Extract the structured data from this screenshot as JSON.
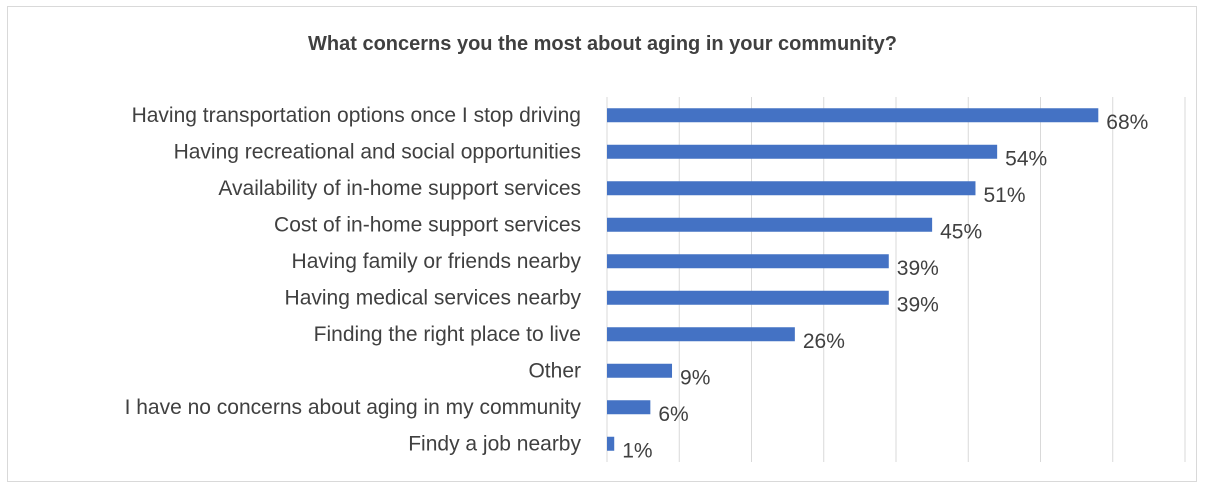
{
  "chart_data": {
    "type": "bar",
    "orientation": "horizontal",
    "title": "What concerns you the most about aging in your community?",
    "categories": [
      "Having transportation options once I stop driving",
      "Having recreational and social opportunities",
      "Availability of in-home support services",
      "Cost of in-home support services",
      "Having family or friends nearby",
      "Having medical services nearby",
      "Finding the right place to live",
      "Other",
      "I have no concerns about aging in my community",
      "Findy a job nearby"
    ],
    "values": [
      68,
      54,
      51,
      45,
      39,
      39,
      26,
      9,
      6,
      1
    ],
    "value_labels": [
      "68%",
      "54%",
      "51%",
      "45%",
      "39%",
      "39%",
      "26%",
      "9%",
      "6%",
      "1%"
    ],
    "xlim": [
      0,
      80
    ],
    "grid": true,
    "legend": "none",
    "colors": {
      "bar": "#4472c4",
      "grid": "#d9d9d9",
      "text": "#404040"
    }
  }
}
